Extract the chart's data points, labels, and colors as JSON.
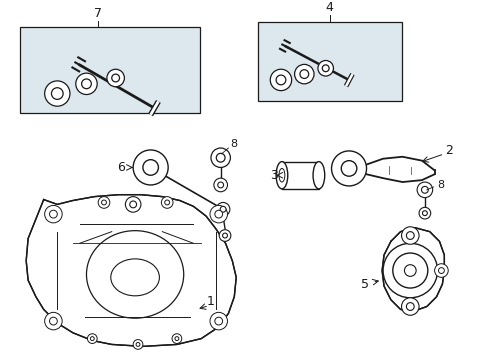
{
  "bg_color": "#ffffff",
  "box_bg": "#dde8ee",
  "line_color": "#1a1a1a",
  "label_color": "#000000",
  "fig_w": 4.89,
  "fig_h": 3.6,
  "dpi": 100
}
